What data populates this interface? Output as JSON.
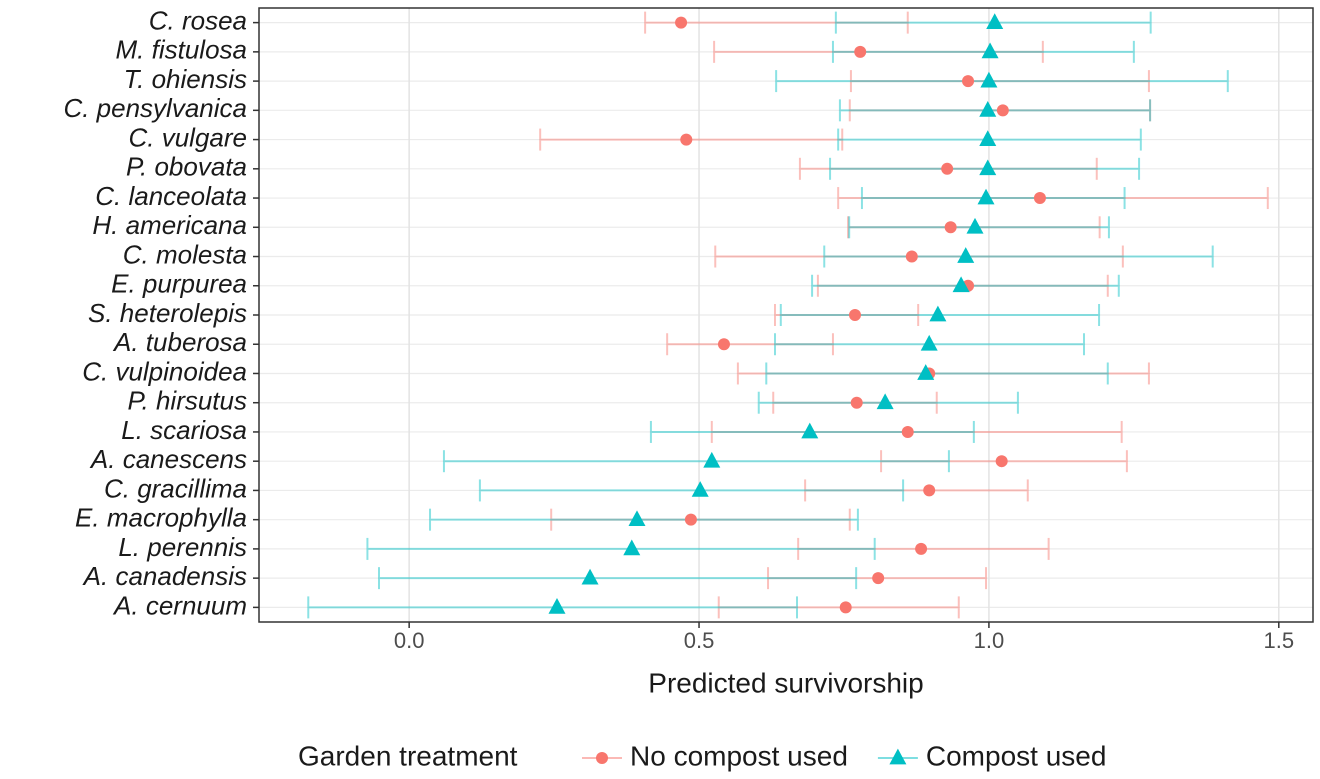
{
  "chart_data": {
    "type": "dot-errorbar",
    "x_label": "Predicted survivorship",
    "legend_title": "Garden treatment",
    "legend_position": "bottom",
    "grid": true,
    "xlim": [
      -0.259,
      1.559
    ],
    "xticks": [
      {
        "value": 0,
        "label": "0.0"
      },
      0.5,
      {
        "value": 1,
        "label": "1.0"
      },
      1.5
    ],
    "categories": [
      "C. rosea",
      "M. fistulosa",
      "T. ohiensis",
      "C. pensylvanica",
      "C. vulgare",
      "P. obovata",
      "C. lanceolata",
      "H. americana",
      "C. molesta",
      "E. purpurea",
      "S. heterolepis",
      "A. tuberosa",
      "C. vulpinoidea",
      "P. hirsutus",
      "L. scariosa",
      "A. canescens",
      "C. gracillima",
      "E. macrophylla",
      "L. perennis",
      "A. canadensis",
      "A. cernuum"
    ],
    "series": [
      {
        "name": "No compost used",
        "color": "#F8766D",
        "marker": "circle",
        "values": [
          0.469,
          0.778,
          0.964,
          1.024,
          0.478,
          0.928,
          1.088,
          0.934,
          0.867,
          0.964,
          0.769,
          0.543,
          0.897,
          0.772,
          0.86,
          1.022,
          0.897,
          0.486,
          0.883,
          0.809,
          0.753
        ],
        "lower": [
          0.407,
          0.526,
          0.762,
          0.76,
          0.226,
          0.674,
          0.74,
          0.757,
          0.528,
          0.705,
          0.631,
          0.445,
          0.567,
          0.628,
          0.522,
          0.814,
          0.683,
          0.245,
          0.671,
          0.619,
          0.534
        ],
        "upper": [
          0.86,
          1.093,
          1.276,
          1.278,
          0.747,
          1.186,
          1.481,
          1.191,
          1.231,
          1.205,
          0.878,
          0.731,
          1.276,
          0.91,
          1.229,
          1.238,
          1.067,
          0.76,
          1.103,
          0.995,
          0.948
        ]
      },
      {
        "name": "Compost used",
        "color": "#00BFC4",
        "marker": "triangle",
        "values": [
          1.01,
          1.002,
          1.0,
          0.998,
          0.998,
          0.998,
          0.995,
          0.976,
          0.96,
          0.952,
          0.912,
          0.897,
          0.891,
          0.821,
          0.691,
          0.522,
          0.502,
          0.393,
          0.384,
          0.312,
          0.255
        ],
        "lower": [
          0.736,
          0.731,
          0.633,
          0.743,
          0.74,
          0.726,
          0.781,
          0.759,
          0.716,
          0.695,
          0.641,
          0.631,
          0.616,
          0.603,
          0.417,
          0.06,
          0.122,
          0.036,
          -0.072,
          -0.052,
          -0.174
        ],
        "upper": [
          1.279,
          1.25,
          1.412,
          1.278,
          1.262,
          1.259,
          1.234,
          1.207,
          1.386,
          1.224,
          1.19,
          1.164,
          1.205,
          1.05,
          0.974,
          0.931,
          0.852,
          0.774,
          0.803,
          0.771,
          0.669
        ]
      }
    ]
  }
}
